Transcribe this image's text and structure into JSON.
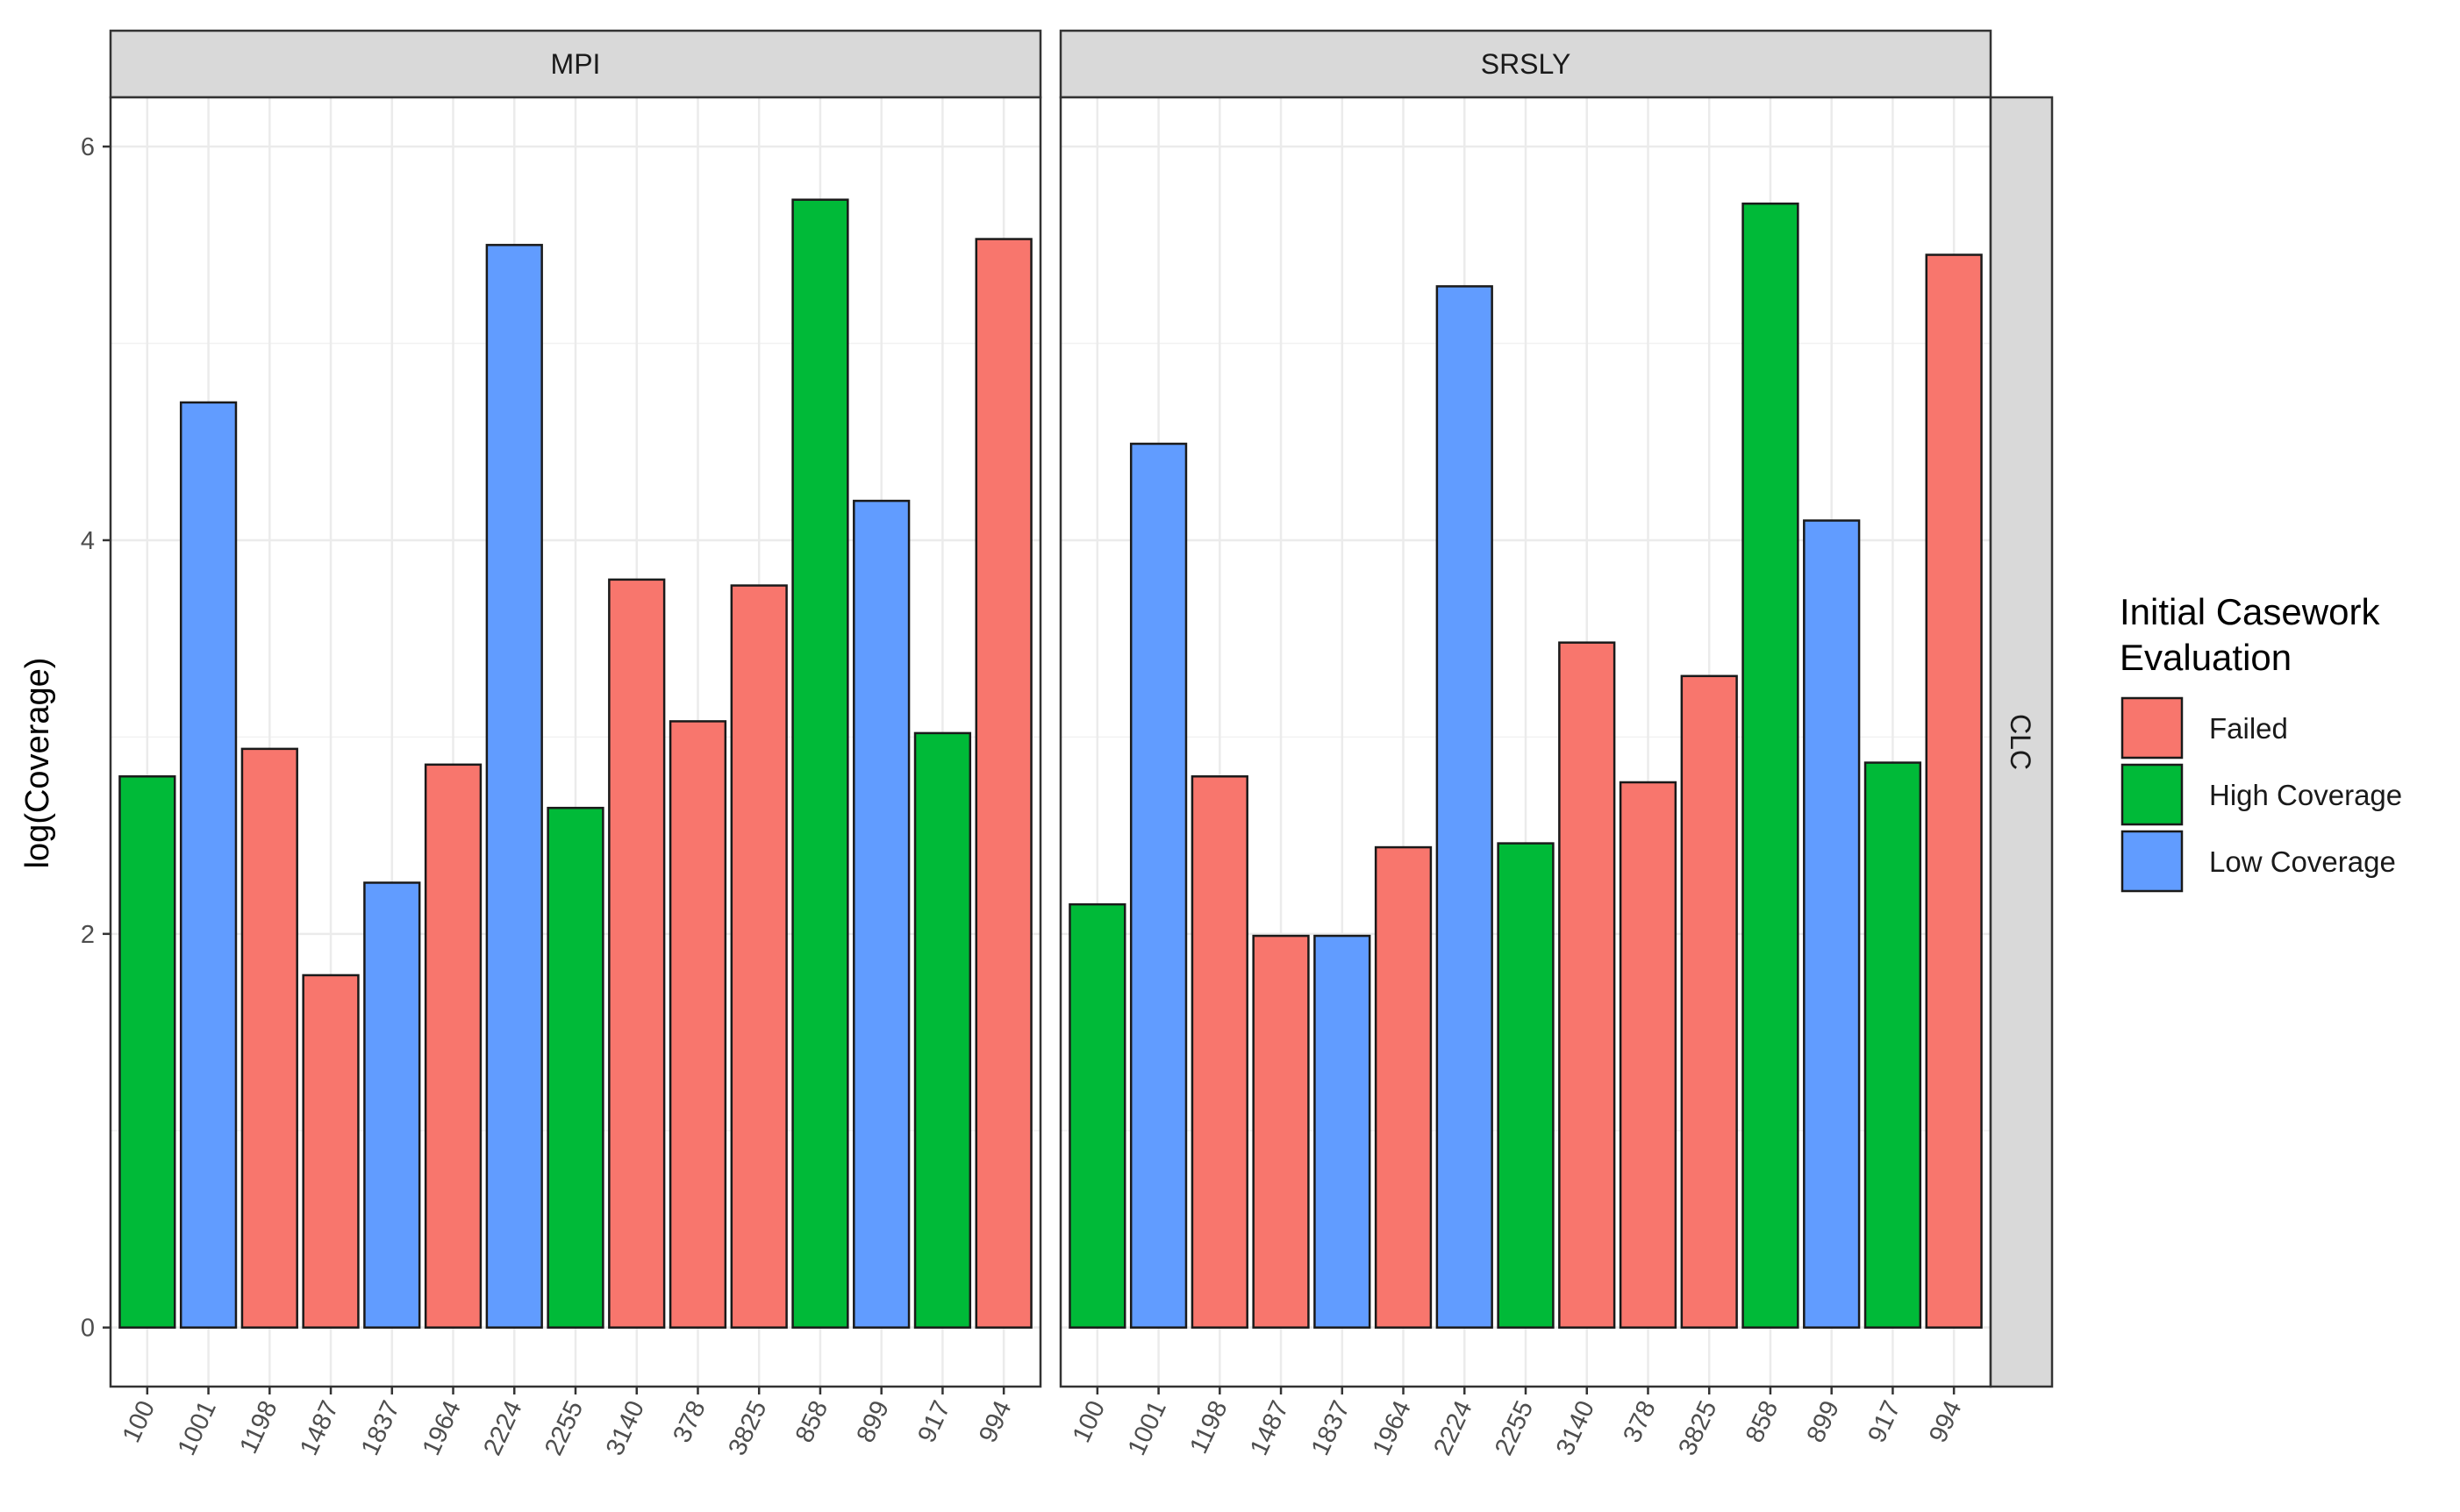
{
  "chart_data": {
    "type": "bar",
    "ylabel": "log(Coverage)",
    "xlabel": "",
    "ylim": [
      -0.3,
      6.25
    ],
    "yticks": [
      0,
      2,
      4,
      6
    ],
    "grid": true,
    "facet_row": "CLC",
    "categories": [
      "100",
      "1001",
      "1198",
      "1487",
      "1837",
      "1964",
      "2224",
      "2255",
      "3140",
      "378",
      "3825",
      "858",
      "899",
      "917",
      "994"
    ],
    "groups": [
      "High Coverage",
      "Low Coverage",
      "Failed",
      "Failed",
      "Low Coverage",
      "Failed",
      "Low Coverage",
      "High Coverage",
      "Failed",
      "Failed",
      "Failed",
      "High Coverage",
      "Low Coverage",
      "High Coverage",
      "Failed"
    ],
    "panels": [
      {
        "name": "MPI",
        "values": [
          2.8,
          4.7,
          2.94,
          1.79,
          2.26,
          2.86,
          5.5,
          2.64,
          3.8,
          3.08,
          3.77,
          5.73,
          4.2,
          3.02,
          5.53
        ]
      },
      {
        "name": "SRSLY",
        "values": [
          2.15,
          4.49,
          2.8,
          1.99,
          1.99,
          2.44,
          5.29,
          2.46,
          3.48,
          2.77,
          3.31,
          5.71,
          4.1,
          2.87,
          5.45
        ]
      }
    ],
    "legend": {
      "title_lines": [
        "Initial Casework",
        "Evaluation"
      ],
      "position": "right",
      "entries": [
        {
          "label": "Failed",
          "color": "#F8766D"
        },
        {
          "label": "High Coverage",
          "color": "#00BA38"
        },
        {
          "label": "Low Coverage",
          "color": "#619CFF"
        }
      ]
    }
  }
}
